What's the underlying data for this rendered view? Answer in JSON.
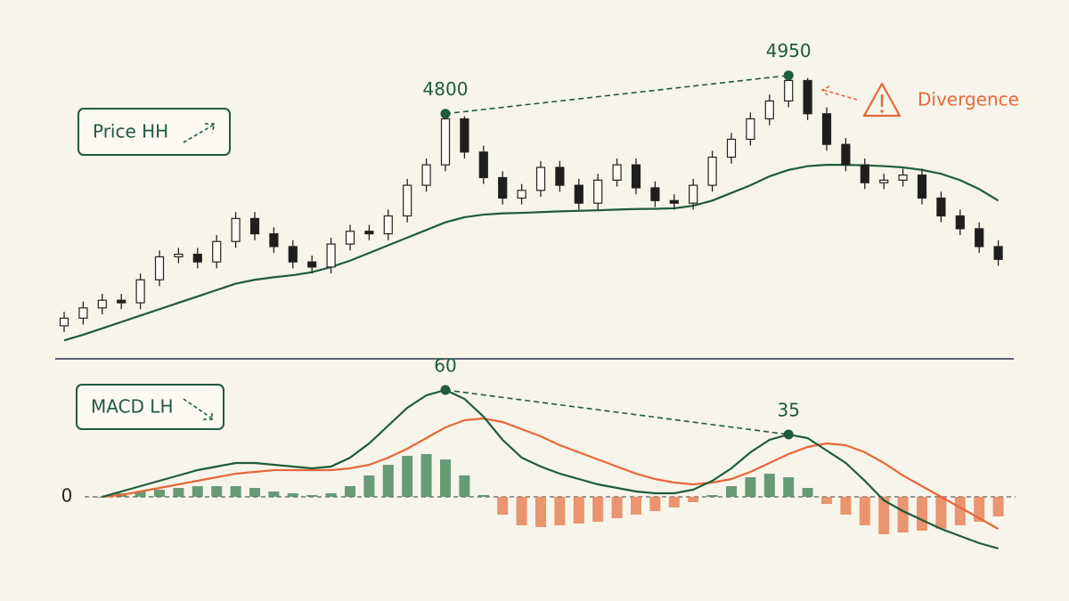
{
  "chart_data": [
    {
      "type": "candlestick",
      "label": "Price HH",
      "open": [
        3970,
        4000,
        4040,
        4070,
        4060,
        4150,
        4240,
        4250,
        4220,
        4300,
        4390,
        4330,
        4280,
        4220,
        4200,
        4290,
        4340,
        4330,
        4400,
        4520,
        4600,
        4780,
        4650,
        4550,
        4470,
        4500,
        4590,
        4520,
        4450,
        4540,
        4600,
        4510,
        4460,
        4450,
        4520,
        4630,
        4700,
        4780,
        4850,
        4930,
        4800,
        4680,
        4600,
        4530,
        4540,
        4560,
        4470,
        4400,
        4350,
        4280
      ],
      "high": [
        4025,
        4065,
        4095,
        4095,
        4175,
        4265,
        4275,
        4275,
        4325,
        4415,
        4415,
        4355,
        4305,
        4245,
        4315,
        4365,
        4365,
        4425,
        4545,
        4625,
        4800,
        4790,
        4675,
        4575,
        4525,
        4615,
        4615,
        4545,
        4565,
        4625,
        4625,
        4535,
        4485,
        4545,
        4655,
        4725,
        4805,
        4875,
        4950,
        4940,
        4825,
        4705,
        4625,
        4565,
        4585,
        4585,
        4495,
        4425,
        4375,
        4305
      ],
      "low": [
        3945,
        3975,
        4015,
        4035,
        4035,
        4125,
        4215,
        4195,
        4195,
        4275,
        4305,
        4255,
        4195,
        4175,
        4175,
        4265,
        4305,
        4305,
        4375,
        4495,
        4575,
        4625,
        4525,
        4445,
        4445,
        4475,
        4495,
        4425,
        4425,
        4515,
        4485,
        4435,
        4425,
        4425,
        4495,
        4605,
        4675,
        4755,
        4825,
        4775,
        4655,
        4575,
        4505,
        4505,
        4515,
        4445,
        4375,
        4325,
        4255,
        4205
      ],
      "close": [
        4000,
        4040,
        4070,
        4060,
        4150,
        4240,
        4250,
        4220,
        4300,
        4390,
        4330,
        4280,
        4220,
        4200,
        4290,
        4340,
        4330,
        4400,
        4520,
        4600,
        4780,
        4650,
        4550,
        4470,
        4500,
        4590,
        4520,
        4450,
        4540,
        4600,
        4510,
        4460,
        4450,
        4520,
        4630,
        4700,
        4780,
        4850,
        4930,
        4800,
        4680,
        4600,
        4530,
        4540,
        4560,
        4470,
        4400,
        4350,
        4280,
        4230
      ],
      "up_color": "#fdfbf5",
      "down_color": "#1e1e1e",
      "ma": {
        "color": "#1f5b3a",
        "values": [
          3913,
          3935,
          3960,
          3985,
          4010,
          4035,
          4060,
          4085,
          4110,
          4135,
          4150,
          4160,
          4168,
          4180,
          4200,
          4225,
          4255,
          4285,
          4315,
          4345,
          4375,
          4395,
          4405,
          4410,
          4412,
          4415,
          4418,
          4420,
          4422,
          4425,
          4427,
          4428,
          4430,
          4440,
          4460,
          4490,
          4520,
          4555,
          4580,
          4595,
          4600,
          4600,
          4598,
          4595,
          4590,
          4580,
          4565,
          4540,
          4505,
          4460
        ]
      },
      "peaks": [
        4800,
        4950
      ],
      "peak_color": "#1f5b3a",
      "annotation": "Divergence",
      "annotation_color": "#e8673a",
      "ylim": [
        3900,
        5050
      ]
    },
    {
      "type": "macd",
      "label": "MACD LH",
      "macd": {
        "color": "#1f5b3a",
        "values": [
          null,
          null,
          0,
          3,
          6,
          9,
          12,
          15,
          17,
          19,
          19,
          18,
          17,
          16,
          17,
          22,
          30,
          40,
          50,
          57,
          60,
          55,
          45,
          32,
          22,
          17,
          13,
          10,
          7,
          5,
          3,
          2,
          2,
          4,
          9,
          16,
          25,
          32,
          35,
          33,
          26,
          19,
          9,
          -2,
          -8,
          -13,
          -18,
          -22,
          -26,
          -29
        ]
      },
      "signal": {
        "color": "#e8673a",
        "values": [
          null,
          null,
          0,
          1,
          3,
          5,
          7,
          9,
          11,
          13,
          14,
          15,
          15,
          15,
          15,
          16,
          18,
          22,
          27,
          33,
          39,
          43,
          44,
          42,
          38,
          34,
          29,
          25,
          21,
          17,
          13,
          10,
          8,
          7,
          8,
          10,
          14,
          19,
          24,
          28,
          30,
          29,
          25,
          19,
          12,
          6,
          0,
          -6,
          -12,
          -18
        ]
      },
      "histogram": {
        "positive_color": "#4e8b62",
        "negative_color": "#e8825a",
        "values": [
          null,
          null,
          0,
          2,
          3,
          4,
          5,
          6,
          6,
          6,
          5,
          3,
          2,
          1,
          2,
          6,
          12,
          18,
          23,
          24,
          21,
          12,
          1,
          -10,
          -16,
          -17,
          -16,
          -15,
          -14,
          -12,
          -10,
          -8,
          -6,
          -3,
          1,
          6,
          11,
          13,
          11,
          5,
          -4,
          -10,
          -16,
          -21,
          -20,
          -19,
          -18,
          -16,
          -14,
          -11
        ]
      },
      "peaks": [
        60,
        35
      ],
      "ylim": [
        -40,
        70
      ],
      "yticks": [
        0
      ]
    }
  ]
}
